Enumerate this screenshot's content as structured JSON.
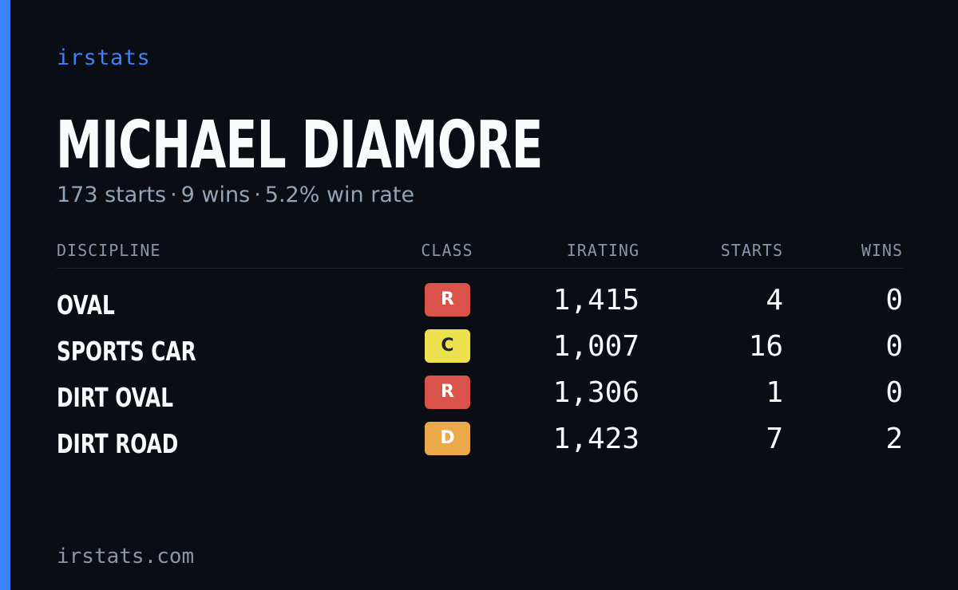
{
  "brand": "irstats",
  "driver": {
    "name": "MICHAEL DIAMORE"
  },
  "summary": {
    "starts": "173 starts",
    "wins": "9 wins",
    "win_rate": "5.2% win rate",
    "separator": "·"
  },
  "table": {
    "headers": {
      "discipline": "DISCIPLINE",
      "class": "CLASS",
      "irating": "IRATING",
      "starts": "STARTS",
      "wins": "WINS"
    },
    "rows": [
      {
        "discipline": "OVAL",
        "class": "R",
        "class_bg": "#d9534a",
        "class_fg": "#ffffff",
        "irating": "1,415",
        "starts": "4",
        "wins": "0"
      },
      {
        "discipline": "SPORTS CAR",
        "class": "C",
        "class_bg": "#ede04f",
        "class_fg": "#1f2430",
        "irating": "1,007",
        "starts": "16",
        "wins": "0"
      },
      {
        "discipline": "DIRT OVAL",
        "class": "R",
        "class_bg": "#d9534a",
        "class_fg": "#ffffff",
        "irating": "1,306",
        "starts": "1",
        "wins": "0"
      },
      {
        "discipline": "DIRT ROAD",
        "class": "D",
        "class_bg": "#eba94a",
        "class_fg": "#ffffff",
        "irating": "1,423",
        "starts": "7",
        "wins": "2"
      }
    ]
  },
  "footer": "irstats.com",
  "colors": {
    "background": "#0a0d14",
    "accent": "#3b82f6",
    "muted": "#94a3b8",
    "text": "#f8fafc"
  }
}
